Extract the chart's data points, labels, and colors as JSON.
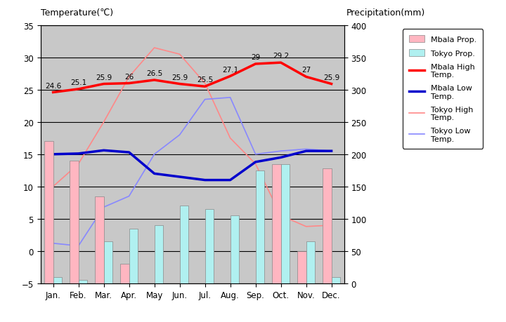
{
  "months": [
    "Jan.",
    "Feb.",
    "Mar.",
    "Apr.",
    "May",
    "Jun.",
    "Jul.",
    "Aug.",
    "Sep.",
    "Oct.",
    "Nov.",
    "Dec."
  ],
  "mbala_precip": [
    220,
    190,
    135,
    30,
    0,
    0,
    0,
    0,
    0,
    185,
    50,
    178
  ],
  "tokyo_precip": [
    10,
    5,
    65,
    85,
    90,
    120,
    115,
    105,
    175,
    185,
    65,
    10
  ],
  "mbala_high": [
    24.6,
    25.1,
    25.9,
    26.0,
    26.5,
    25.9,
    25.5,
    27.1,
    29.0,
    29.2,
    27.0,
    25.9
  ],
  "mbala_low": [
    15.0,
    15.1,
    15.6,
    15.3,
    12.0,
    11.5,
    11.0,
    11.0,
    13.8,
    14.5,
    15.5,
    15.5
  ],
  "tokyo_high": [
    10.0,
    13.5,
    20.0,
    27.0,
    31.5,
    30.5,
    26.0,
    17.5,
    13.5,
    5.5,
    3.8,
    4.0
  ],
  "tokyo_low": [
    1.2,
    0.8,
    6.8,
    8.5,
    15.0,
    18.0,
    23.5,
    23.8,
    15.0,
    15.5,
    15.8,
    15.5
  ],
  "mbala_precip_color": "#FFB6C1",
  "tokyo_precip_color": "#B0F0F0",
  "mbala_high_color": "#FF0000",
  "mbala_low_color": "#0000CC",
  "tokyo_high_color": "#FF8888",
  "tokyo_low_color": "#8888FF",
  "title_left": "Temperature(℃)",
  "title_right": "Precipitation(mm)",
  "ylim_left": [
    -5,
    35
  ],
  "ylim_right": [
    0,
    400
  ],
  "bg_color": "#C8C8C8",
  "high_labels": [
    "24.6",
    "25.1",
    "25.9",
    "26",
    "26.5",
    "25.9",
    "25.5",
    "27.1",
    "29",
    "29.2",
    "27",
    "25.9"
  ]
}
